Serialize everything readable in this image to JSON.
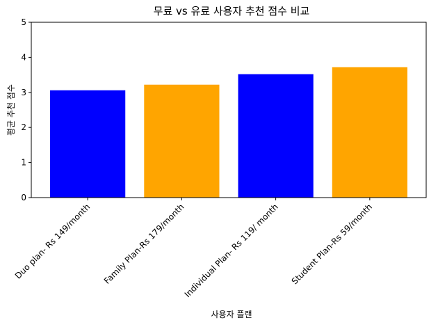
{
  "chart_data": {
    "type": "bar",
    "title": "무료 vs 유료 사용자 추천 점수 비교",
    "xlabel": "사용자 플랜",
    "ylabel": "평균 추천 점수",
    "categories": [
      "Duo plan- Rs 149/month",
      "Family Plan-Rs 179/month",
      "Individual Plan- Rs 119/ month",
      "Student Plan-Rs 59/month"
    ],
    "values": [
      3.06,
      3.22,
      3.52,
      3.72
    ],
    "bar_colors": [
      "#0000ff",
      "#ffa500",
      "#0000ff",
      "#ffa500"
    ],
    "ylim": [
      0,
      5
    ],
    "yticks": [
      "0",
      "1",
      "2",
      "3",
      "4",
      "5"
    ],
    "grid": false,
    "legend": "none"
  }
}
